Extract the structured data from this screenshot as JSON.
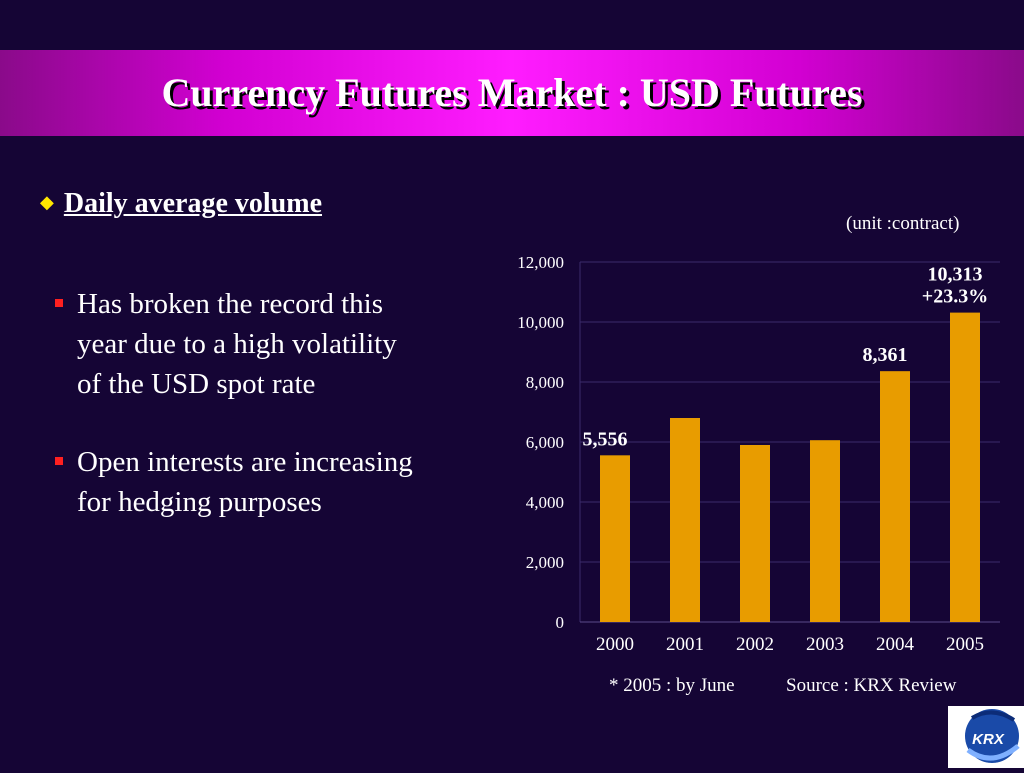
{
  "title": "Currency Futures Market : USD Futures",
  "section": {
    "heading": "Daily average volume"
  },
  "bullets": [
    {
      "text": "Has broken the record this\nyear due to a high volatility\nof the USD spot rate"
    },
    {
      "text": "Open interests are increasing\nfor hedging purposes"
    }
  ],
  "unit_note": "(unit :contract)",
  "footnotes": {
    "note": "* 2005 : by June",
    "source": "Source : KRX Review"
  },
  "logo_text": "KRX",
  "colors": {
    "background": "#150535",
    "title_bar": "#ff1cff",
    "bar": "#e89c00",
    "diamond": "#ffe600",
    "bullet_marker": "#ff2020"
  },
  "chart_data": {
    "type": "bar",
    "categories": [
      "2000",
      "2001",
      "2002",
      "2003",
      "2004",
      "2005"
    ],
    "values": [
      5556,
      6800,
      5900,
      6060,
      8361,
      10313
    ],
    "ylim": [
      0,
      12000
    ],
    "yticks": [
      0,
      2000,
      4000,
      6000,
      8000,
      10000,
      12000
    ],
    "ytick_labels": [
      "0",
      "2,000",
      "4,000",
      "6,000",
      "8,000",
      "10,000",
      "12,000"
    ],
    "data_labels": [
      {
        "index": 0,
        "lines": [
          "5,556"
        ]
      },
      {
        "index": 4,
        "lines": [
          "8,361"
        ]
      },
      {
        "index": 5,
        "lines": [
          "10,313",
          "+23.3%"
        ]
      }
    ],
    "grid": true
  }
}
